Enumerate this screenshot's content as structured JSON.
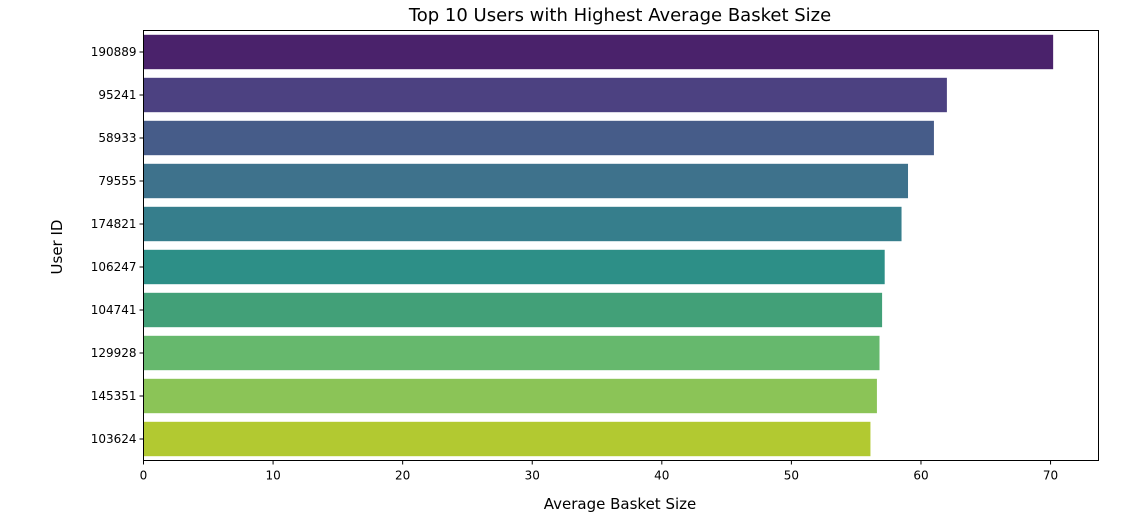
{
  "chart_data": {
    "type": "bar",
    "orientation": "horizontal",
    "title": "Top 10 Users with Highest Average Basket Size",
    "xlabel": "Average Basket Size",
    "ylabel": "User ID",
    "categories": [
      "190889",
      "95241",
      "58933",
      "79555",
      "174821",
      "106247",
      "104741",
      "129928",
      "145351",
      "103624"
    ],
    "values": [
      70.2,
      62.0,
      61.0,
      59.0,
      58.5,
      57.2,
      57.0,
      56.8,
      56.6,
      56.1
    ],
    "xlim": [
      0,
      73.7
    ],
    "xticks": [
      0,
      10,
      20,
      30,
      40,
      50,
      60,
      70
    ],
    "grid": false,
    "colors": [
      "#4a226b",
      "#4c4181",
      "#465c89",
      "#3e728c",
      "#367e8c",
      "#2d8f87",
      "#42a078",
      "#66b86d",
      "#8bc457",
      "#b2c931"
    ]
  }
}
